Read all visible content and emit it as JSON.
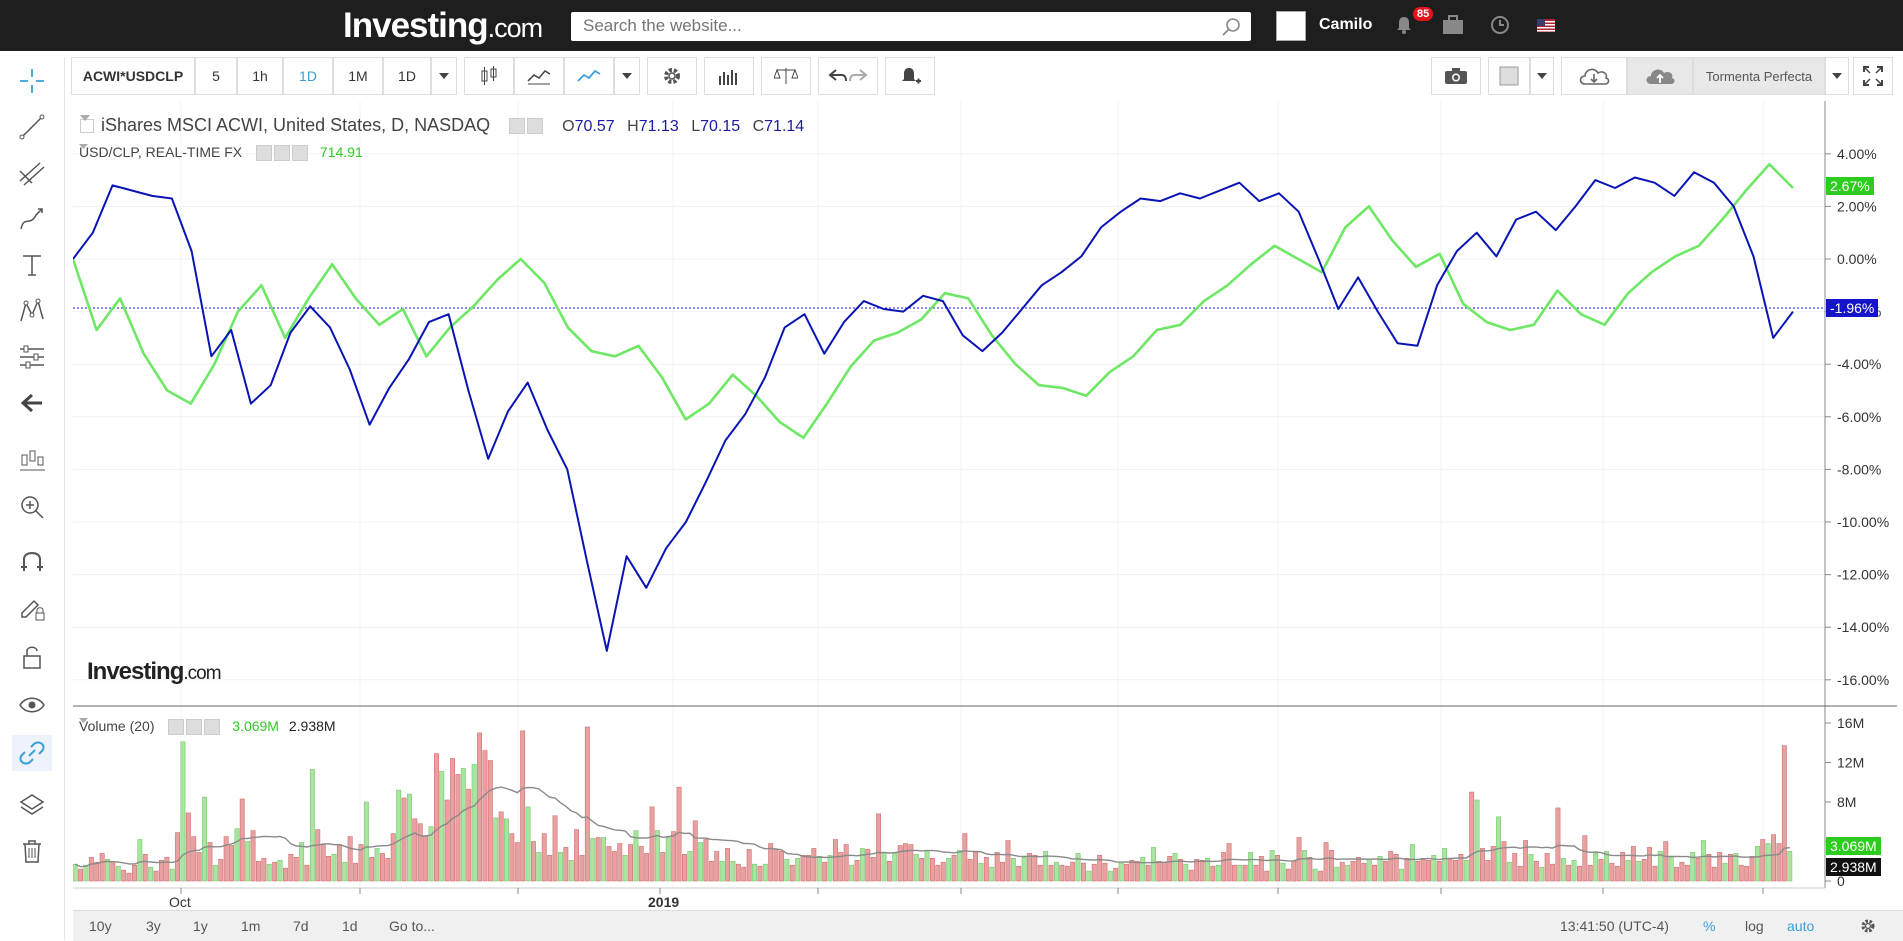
{
  "header": {
    "logo_main": "Investing",
    "logo_dot": ".com",
    "search_placeholder": "Search the website...",
    "user_name": "Camilo",
    "notif_count": "85"
  },
  "toolbar": {
    "symbol": "ACWI*USDCLP",
    "intervals": [
      "5",
      "1h",
      "1D",
      "1M",
      "1D"
    ],
    "selected_interval": "1D",
    "template": "Tormenta Perfecta"
  },
  "legend": {
    "main_title": "iShares MSCI ACWI, United States, D, NASDAQ",
    "o_label": "O",
    "o_val": "70.57",
    "h_label": "H",
    "h_val": "71.13",
    "l_label": "L",
    "l_val": "70.15",
    "c_label": "C",
    "c_val": "71.14",
    "fx_title": "USD/CLP, REAL-TIME FX",
    "fx_val": "714.91",
    "vol_title": "Volume (20)",
    "vol_val1": "3.069M",
    "vol_val2": "2.938M",
    "watermark_main": "Investing",
    "watermark_dot": ".com"
  },
  "price_tags": {
    "green": "2.67%",
    "blue": "-1.96%",
    "vol_green": "3.069M",
    "vol_black": "2.938M"
  },
  "bottom": {
    "ranges": [
      "10y",
      "3y",
      "1y",
      "1m",
      "7d",
      "1d",
      "Go to..."
    ],
    "time": "13:41:50 (UTC-4)",
    "pct": "%",
    "log": "log",
    "auto": "auto"
  },
  "colors": {
    "blue_series": "#0a14b4",
    "green_series": "#6ee864",
    "up_volume": "#a9e4a0",
    "down_volume": "#e8a0a0",
    "accent": "#3aa0d8"
  },
  "chart_data": {
    "type": "line",
    "y_axis_ticks": [
      "4.00%",
      "2.00%",
      "0.00%",
      "-2.00%",
      "-4.00%",
      "-6.00%",
      "-8.00%",
      "-10.00%",
      "-12.00%",
      "-14.00%",
      "-16.00%"
    ],
    "y_axis_ticks_volume": [
      "16M",
      "12M",
      "8M",
      "4M",
      "0"
    ],
    "x_tick_labels": [
      "Oct",
      "2019"
    ],
    "series": [
      {
        "name": "iShares MSCI ACWI",
        "color": "#0a14b4",
        "values": [
          0.0,
          1.0,
          2.8,
          2.6,
          2.4,
          2.3,
          0.3,
          -3.7,
          -2.7,
          -5.5,
          -4.8,
          -2.8,
          -1.8,
          -2.6,
          -4.2,
          -6.3,
          -4.9,
          -3.8,
          -2.4,
          -2.1,
          -5.0,
          -7.6,
          -5.8,
          -4.7,
          -6.5,
          -8.0,
          -11.5,
          -14.9,
          -11.3,
          -12.5,
          -11.0,
          -10.0,
          -8.5,
          -6.9,
          -5.9,
          -4.5,
          -2.6,
          -2.1,
          -3.6,
          -2.4,
          -1.6,
          -1.9,
          -2.0,
          -1.4,
          -1.6,
          -2.9,
          -3.5,
          -2.8,
          -1.9,
          -1.0,
          -0.5,
          0.1,
          1.2,
          1.8,
          2.3,
          2.2,
          2.5,
          2.3,
          2.6,
          2.9,
          2.2,
          2.5,
          1.8,
          0.0,
          -1.9,
          -0.7,
          -2.0,
          -3.2,
          -3.3,
          -1.0,
          0.3,
          1.0,
          0.1,
          1.5,
          1.8,
          1.1,
          2.0,
          3.0,
          2.7,
          3.1,
          2.9,
          2.4,
          3.3,
          2.9,
          2.0,
          0.1,
          -3.0,
          -2.0
        ]
      },
      {
        "name": "USD/CLP",
        "color": "#6ee864",
        "values": [
          0.0,
          -2.7,
          -1.5,
          -3.6,
          -5.0,
          -5.5,
          -4.0,
          -2.0,
          -1.0,
          -3.0,
          -1.5,
          -0.2,
          -1.5,
          -2.5,
          -1.9,
          -3.7,
          -2.6,
          -1.8,
          -0.8,
          0.0,
          -0.9,
          -2.6,
          -3.5,
          -3.7,
          -3.3,
          -4.5,
          -6.1,
          -5.5,
          -4.4,
          -5.2,
          -6.2,
          -6.8,
          -5.5,
          -4.1,
          -3.1,
          -2.8,
          -2.3,
          -1.3,
          -1.5,
          -2.9,
          -4.0,
          -4.8,
          -4.9,
          -5.2,
          -4.3,
          -3.7,
          -2.7,
          -2.5,
          -1.6,
          -1.0,
          -0.2,
          0.5,
          0.0,
          -0.5,
          1.2,
          2.0,
          0.7,
          -0.3,
          0.2,
          -1.7,
          -2.4,
          -2.7,
          -2.5,
          -1.2,
          -2.1,
          -2.5,
          -1.3,
          -0.5,
          0.1,
          0.5,
          1.5,
          2.6,
          3.6,
          2.7
        ]
      }
    ],
    "volume": {
      "name": "Volume (20)",
      "unit": "M",
      "values": [
        1.7,
        1.2,
        1.6,
        2.4,
        1.9,
        2.8,
        2.2,
        1.9,
        1.5,
        1.1,
        0.8,
        1.6,
        4.2,
        2.7,
        1.4,
        1.0,
        2.1,
        2.4,
        1.2,
        4.9,
        14.1,
        6.9,
        4.5,
        2.9,
        8.5,
        3.9,
        1.6,
        2.2,
        4.5,
        3.6,
        5.3,
        8.3,
        4.0,
        5.1,
        2.0,
        2.3,
        1.7,
        1.9,
        2.1,
        1.3,
        2.7,
        2.4,
        3.9,
        1.6,
        11.3,
        5.2,
        3.7,
        2.5,
        2.7,
        3.7,
        1.9,
        4.5,
        1.8,
        3.7,
        8.0,
        2.4,
        3.3,
        2.8,
        2.3,
        4.8,
        9.2,
        8.4,
        8.8,
        6.3,
        5.8,
        4.5,
        5.5,
        12.9,
        11.1,
        8.2,
        12.4,
        10.8,
        11.4,
        9.3,
        11.8,
        15.0,
        13.2,
        12.2,
        6.4,
        7.0,
        6.3,
        4.8,
        3.9,
        15.2,
        7.5,
        4.0,
        2.9,
        4.8,
        2.6,
        6.6,
        2.9,
        3.4,
        2.1,
        5.2,
        2.6,
        15.6,
        4.3,
        4.4,
        4.4,
        3.5,
        3.0,
        3.8,
        2.6,
        3.7,
        5.1,
        3.5,
        2.8,
        7.5,
        5.1,
        2.9,
        4.4,
        5.0,
        9.5,
        2.7,
        3.0,
        6.1,
        3.9,
        4.2,
        2.0,
        3.0,
        2.0,
        3.3,
        2.0,
        1.7,
        1.4,
        3.2,
        1.7,
        1.5,
        1.7,
        3.8,
        3.2,
        3.0,
        2.2,
        1.6,
        2.3,
        2.6,
        2.6,
        3.3,
        2.5,
        1.9,
        2.6,
        4.2,
        2.9,
        3.7,
        1.6,
        2.1,
        3.3,
        3.2,
        2.4,
        6.8,
        2.9,
        2.0,
        2.8,
        3.6,
        3.8,
        3.7,
        2.7,
        2.3,
        3.1,
        2.3,
        1.6,
        1.9,
        2.3,
        2.6,
        3.1,
        4.8,
        2.2,
        2.9,
        1.8,
        2.4,
        1.4,
        2.9,
        1.9,
        4.1,
        2.3,
        1.5,
        2.4,
        2.8,
        2.6,
        1.6,
        3.0,
        1.6,
        1.9,
        1.6,
        1.5,
        1.9,
        2.8,
        1.8,
        1.0,
        1.7,
        2.6,
        1.8,
        1.0,
        1.3,
        1.8,
        1.7,
        2.1,
        2.0,
        2.4,
        1.6,
        3.4,
        2.0,
        1.9,
        2.5,
        2.8,
        2.2,
        1.7,
        1.1,
        2.2,
        2.1,
        2.3,
        1.5,
        1.6,
        2.9,
        3.8,
        1.6,
        1.6,
        1.6,
        2.9,
        1.6,
        2.5,
        1.0,
        3.1,
        2.6,
        1.8,
        1.2,
        2.0,
        4.4,
        3.1,
        2.4,
        1.2,
        1.0,
        3.9,
        3.1,
        1.4,
        1.9,
        1.6,
        2.0,
        2.4,
        1.8,
        2.2,
        1.6,
        2.5,
        2.0,
        3.0,
        2.7,
        1.2,
        2.3,
        3.7,
        2.0,
        2.3,
        2.1,
        2.6,
        2.0,
        3.3,
        2.3,
        2.1,
        2.7,
        2.1,
        9.0,
        8.2,
        3.3,
        2.1,
        3.5,
        6.5,
        4.0,
        1.9,
        2.8,
        1.5,
        4.1,
        2.7,
        2.0,
        1.4,
        2.8,
        1.7,
        7.4,
        2.3,
        1.6,
        2.1,
        1.5,
        4.6,
        1.6,
        2.8,
        2.2,
        3.0,
        1.8,
        1.5,
        2.9,
        2.1,
        3.5,
        2.0,
        2.2,
        3.4,
        1.5,
        3.0,
        4.0,
        2.5,
        1.4,
        1.9,
        1.6,
        2.9,
        2.3,
        4.1,
        2.7,
        1.4,
        2.9,
        1.8,
        2.7,
        2.8,
        1.6,
        1.5,
        2.5,
        3.5,
        4.2,
        3.8,
        4.7,
        3.8,
        13.7,
        3.0
      ]
    }
  }
}
